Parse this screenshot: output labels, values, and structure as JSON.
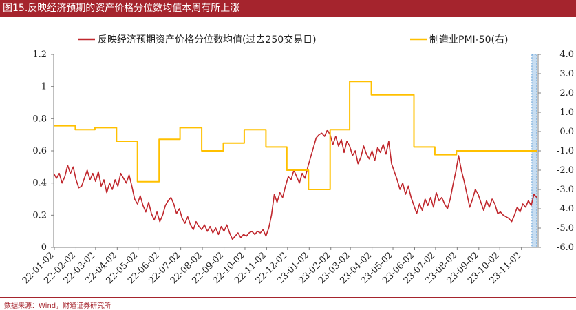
{
  "title": "图15.反映经济预期的资产价格分位数均值本周有所上涨",
  "source": "数据来源：Wind，财通证券研究所",
  "colors": {
    "title_bg": "#a5242d",
    "series_red": "#c0272d",
    "series_yellow": "#ffc000",
    "highlight_fill": "#bdd7ee",
    "highlight_stroke": "#5b9bd5",
    "axis": "#7f7f7f"
  },
  "chart_data": {
    "type": "line",
    "x_axis": {
      "start": "2022-01-01",
      "end": "2023-11-24",
      "tick_labels": [
        "22-01-02",
        "22-02-02",
        "22-03-02",
        "22-04-02",
        "22-05-02",
        "22-06-02",
        "22-07-02",
        "22-08-02",
        "22-09-02",
        "22-10-02",
        "22-11-02",
        "22-12-02",
        "23-01-02",
        "23-02-02",
        "23-03-02",
        "23-04-02",
        "23-05-02",
        "23-06-02",
        "23-07-02",
        "23-08-02",
        "23-09-02",
        "23-10-02",
        "23-11-02"
      ],
      "tick_dates": [
        "2022-01-02",
        "2022-02-02",
        "2022-03-02",
        "2022-04-02",
        "2022-05-02",
        "2022-06-02",
        "2022-07-02",
        "2022-08-02",
        "2022-09-02",
        "2022-10-02",
        "2022-11-02",
        "2022-12-02",
        "2023-01-02",
        "2023-02-02",
        "2023-03-02",
        "2023-04-02",
        "2023-05-02",
        "2023-06-02",
        "2023-07-02",
        "2023-08-02",
        "2023-09-02",
        "2023-10-02",
        "2023-11-02"
      ]
    },
    "y_left": {
      "min": 0,
      "max": 1.2,
      "ticks": [
        0,
        0.2,
        0.4,
        0.6,
        0.8,
        1,
        1.2
      ],
      "tick_labels": [
        "0",
        "0.2",
        "0.4",
        "0.6",
        "0.8",
        "1",
        "1.2"
      ]
    },
    "y_right": {
      "min": -6.0,
      "max": 4.0,
      "ticks": [
        -6,
        -5,
        -4,
        -3,
        -2,
        -1,
        0,
        1,
        2,
        3,
        4
      ],
      "tick_labels": [
        "-6.0",
        "-5.0",
        "-4.0",
        "-3.0",
        "-2.0",
        "-1.0",
        "0.0",
        "1.0",
        "2.0",
        "3.0",
        "4.0"
      ]
    },
    "highlight": {
      "from": "2023-11-17",
      "to": "2023-11-24"
    },
    "legend": {
      "position": "top"
    },
    "grid": false,
    "series": [
      {
        "name": "反映经济预期资产价格分位数均值(过去250交易日)",
        "axis": "left",
        "color": "#c0272d",
        "points": [
          [
            "2022-01-01",
            0.46
          ],
          [
            "2022-01-05",
            0.43
          ],
          [
            "2022-01-09",
            0.46
          ],
          [
            "2022-01-13",
            0.4
          ],
          [
            "2022-01-17",
            0.44
          ],
          [
            "2022-01-21",
            0.51
          ],
          [
            "2022-01-25",
            0.46
          ],
          [
            "2022-01-29",
            0.5
          ],
          [
            "2022-02-02",
            0.42
          ],
          [
            "2022-02-06",
            0.37
          ],
          [
            "2022-02-10",
            0.38
          ],
          [
            "2022-02-14",
            0.43
          ],
          [
            "2022-02-18",
            0.48
          ],
          [
            "2022-02-22",
            0.42
          ],
          [
            "2022-02-26",
            0.46
          ],
          [
            "2022-03-02",
            0.41
          ],
          [
            "2022-03-06",
            0.47
          ],
          [
            "2022-03-10",
            0.38
          ],
          [
            "2022-03-14",
            0.42
          ],
          [
            "2022-03-18",
            0.34
          ],
          [
            "2022-03-22",
            0.4
          ],
          [
            "2022-03-26",
            0.36
          ],
          [
            "2022-03-30",
            0.42
          ],
          [
            "2022-04-03",
            0.38
          ],
          [
            "2022-04-07",
            0.46
          ],
          [
            "2022-04-11",
            0.43
          ],
          [
            "2022-04-15",
            0.4
          ],
          [
            "2022-04-19",
            0.45
          ],
          [
            "2022-04-23",
            0.38
          ],
          [
            "2022-04-27",
            0.3
          ],
          [
            "2022-05-01",
            0.27
          ],
          [
            "2022-05-05",
            0.32
          ],
          [
            "2022-05-09",
            0.26
          ],
          [
            "2022-05-13",
            0.22
          ],
          [
            "2022-05-17",
            0.28
          ],
          [
            "2022-05-21",
            0.21
          ],
          [
            "2022-05-25",
            0.17
          ],
          [
            "2022-05-29",
            0.22
          ],
          [
            "2022-06-02",
            0.16
          ],
          [
            "2022-06-06",
            0.2
          ],
          [
            "2022-06-10",
            0.26
          ],
          [
            "2022-06-14",
            0.29
          ],
          [
            "2022-06-18",
            0.31
          ],
          [
            "2022-06-22",
            0.27
          ],
          [
            "2022-06-26",
            0.21
          ],
          [
            "2022-06-30",
            0.24
          ],
          [
            "2022-07-04",
            0.18
          ],
          [
            "2022-07-08",
            0.15
          ],
          [
            "2022-07-12",
            0.19
          ],
          [
            "2022-07-16",
            0.14
          ],
          [
            "2022-07-20",
            0.11
          ],
          [
            "2022-07-24",
            0.16
          ],
          [
            "2022-07-28",
            0.13
          ],
          [
            "2022-08-01",
            0.11
          ],
          [
            "2022-08-05",
            0.14
          ],
          [
            "2022-08-09",
            0.1
          ],
          [
            "2022-08-13",
            0.13
          ],
          [
            "2022-08-17",
            0.09
          ],
          [
            "2022-08-21",
            0.12
          ],
          [
            "2022-08-25",
            0.08
          ],
          [
            "2022-08-29",
            0.13
          ],
          [
            "2022-09-02",
            0.1
          ],
          [
            "2022-09-06",
            0.14
          ],
          [
            "2022-09-10",
            0.09
          ],
          [
            "2022-09-14",
            0.05
          ],
          [
            "2022-09-18",
            0.07
          ],
          [
            "2022-09-22",
            0.09
          ],
          [
            "2022-09-26",
            0.06
          ],
          [
            "2022-09-30",
            0.08
          ],
          [
            "2022-10-04",
            0.07
          ],
          [
            "2022-10-08",
            0.09
          ],
          [
            "2022-10-12",
            0.1
          ],
          [
            "2022-10-16",
            0.08
          ],
          [
            "2022-10-20",
            0.1
          ],
          [
            "2022-10-24",
            0.09
          ],
          [
            "2022-10-28",
            0.11
          ],
          [
            "2022-11-01",
            0.07
          ],
          [
            "2022-11-05",
            0.12
          ],
          [
            "2022-11-09",
            0.2
          ],
          [
            "2022-11-13",
            0.33
          ],
          [
            "2022-11-17",
            0.28
          ],
          [
            "2022-11-21",
            0.34
          ],
          [
            "2022-11-25",
            0.31
          ],
          [
            "2022-11-29",
            0.38
          ],
          [
            "2022-12-03",
            0.44
          ],
          [
            "2022-12-07",
            0.42
          ],
          [
            "2022-12-11",
            0.48
          ],
          [
            "2022-12-15",
            0.44
          ],
          [
            "2022-12-19",
            0.4
          ],
          [
            "2022-12-23",
            0.46
          ],
          [
            "2022-12-27",
            0.43
          ],
          [
            "2022-12-31",
            0.5
          ],
          [
            "2023-01-04",
            0.56
          ],
          [
            "2023-01-08",
            0.62
          ],
          [
            "2023-01-12",
            0.68
          ],
          [
            "2023-01-16",
            0.7
          ],
          [
            "2023-01-20",
            0.71
          ],
          [
            "2023-01-24",
            0.69
          ],
          [
            "2023-01-28",
            0.73
          ],
          [
            "2023-02-01",
            0.7
          ],
          [
            "2023-02-05",
            0.64
          ],
          [
            "2023-02-09",
            0.69
          ],
          [
            "2023-02-13",
            0.63
          ],
          [
            "2023-02-17",
            0.67
          ],
          [
            "2023-02-21",
            0.59
          ],
          [
            "2023-02-25",
            0.66
          ],
          [
            "2023-03-01",
            0.63
          ],
          [
            "2023-03-05",
            0.57
          ],
          [
            "2023-03-09",
            0.6
          ],
          [
            "2023-03-13",
            0.52
          ],
          [
            "2023-03-17",
            0.56
          ],
          [
            "2023-03-21",
            0.63
          ],
          [
            "2023-03-25",
            0.58
          ],
          [
            "2023-03-29",
            0.55
          ],
          [
            "2023-04-02",
            0.6
          ],
          [
            "2023-04-06",
            0.54
          ],
          [
            "2023-04-10",
            0.62
          ],
          [
            "2023-04-14",
            0.59
          ],
          [
            "2023-04-18",
            0.64
          ],
          [
            "2023-04-22",
            0.58
          ],
          [
            "2023-04-26",
            0.66
          ],
          [
            "2023-04-30",
            0.52
          ],
          [
            "2023-05-04",
            0.47
          ],
          [
            "2023-05-08",
            0.42
          ],
          [
            "2023-05-12",
            0.36
          ],
          [
            "2023-05-16",
            0.4
          ],
          [
            "2023-05-20",
            0.33
          ],
          [
            "2023-05-24",
            0.38
          ],
          [
            "2023-05-28",
            0.31
          ],
          [
            "2023-06-01",
            0.26
          ],
          [
            "2023-06-05",
            0.21
          ],
          [
            "2023-06-09",
            0.27
          ],
          [
            "2023-06-13",
            0.23
          ],
          [
            "2023-06-17",
            0.3
          ],
          [
            "2023-06-21",
            0.26
          ],
          [
            "2023-06-25",
            0.31
          ],
          [
            "2023-06-29",
            0.25
          ],
          [
            "2023-07-03",
            0.34
          ],
          [
            "2023-07-07",
            0.29
          ],
          [
            "2023-07-11",
            0.31
          ],
          [
            "2023-07-15",
            0.27
          ],
          [
            "2023-07-19",
            0.24
          ],
          [
            "2023-07-23",
            0.3
          ],
          [
            "2023-07-27",
            0.39
          ],
          [
            "2023-07-31",
            0.47
          ],
          [
            "2023-08-04",
            0.57
          ],
          [
            "2023-08-08",
            0.48
          ],
          [
            "2023-08-12",
            0.41
          ],
          [
            "2023-08-16",
            0.33
          ],
          [
            "2023-08-20",
            0.25
          ],
          [
            "2023-08-24",
            0.3
          ],
          [
            "2023-08-28",
            0.36
          ],
          [
            "2023-09-01",
            0.33
          ],
          [
            "2023-09-05",
            0.28
          ],
          [
            "2023-09-09",
            0.23
          ],
          [
            "2023-09-13",
            0.29
          ],
          [
            "2023-09-17",
            0.25
          ],
          [
            "2023-09-21",
            0.3
          ],
          [
            "2023-09-25",
            0.27
          ],
          [
            "2023-09-29",
            0.21
          ],
          [
            "2023-10-03",
            0.22
          ],
          [
            "2023-10-07",
            0.2
          ],
          [
            "2023-10-11",
            0.19
          ],
          [
            "2023-10-15",
            0.18
          ],
          [
            "2023-10-19",
            0.16
          ],
          [
            "2023-10-23",
            0.2
          ],
          [
            "2023-10-27",
            0.25
          ],
          [
            "2023-10-31",
            0.22
          ],
          [
            "2023-11-04",
            0.27
          ],
          [
            "2023-11-08",
            0.25
          ],
          [
            "2023-11-12",
            0.29
          ],
          [
            "2023-11-16",
            0.26
          ],
          [
            "2023-11-20",
            0.33
          ],
          [
            "2023-11-24",
            0.31
          ]
        ]
      },
      {
        "name": "制造业PMI-50(右)",
        "axis": "right",
        "color": "#ffc000",
        "points": [
          [
            "2022-01-01",
            0.3
          ],
          [
            "2022-02-01",
            0.3
          ],
          [
            "2022-02-01",
            0.1
          ],
          [
            "2022-03-01",
            0.1
          ],
          [
            "2022-03-01",
            0.2
          ],
          [
            "2022-04-01",
            0.2
          ],
          [
            "2022-04-01",
            -0.5
          ],
          [
            "2022-05-01",
            -0.5
          ],
          [
            "2022-05-01",
            -2.6
          ],
          [
            "2022-06-01",
            -2.6
          ],
          [
            "2022-06-01",
            -0.4
          ],
          [
            "2022-07-01",
            -0.4
          ],
          [
            "2022-07-01",
            0.2
          ],
          [
            "2022-08-01",
            0.2
          ],
          [
            "2022-08-01",
            -1.0
          ],
          [
            "2022-09-01",
            -1.0
          ],
          [
            "2022-09-01",
            -0.6
          ],
          [
            "2022-10-01",
            -0.6
          ],
          [
            "2022-10-01",
            0.1
          ],
          [
            "2022-11-01",
            0.1
          ],
          [
            "2022-11-01",
            -0.8
          ],
          [
            "2022-12-01",
            -0.8
          ],
          [
            "2022-12-01",
            -2.0
          ],
          [
            "2023-01-01",
            -2.0
          ],
          [
            "2023-01-01",
            -3.0
          ],
          [
            "2023-02-01",
            -3.0
          ],
          [
            "2023-02-01",
            0.1
          ],
          [
            "2023-03-01",
            0.1
          ],
          [
            "2023-03-01",
            2.6
          ],
          [
            "2023-04-01",
            2.6
          ],
          [
            "2023-04-01",
            1.9
          ],
          [
            "2023-05-01",
            1.9
          ],
          [
            "2023-06-01",
            1.9
          ],
          [
            "2023-06-01",
            -0.8
          ],
          [
            "2023-07-01",
            -0.8
          ],
          [
            "2023-07-01",
            -1.2
          ],
          [
            "2023-08-01",
            -1.2
          ],
          [
            "2023-08-01",
            -1.0
          ],
          [
            "2023-09-01",
            -1.0
          ],
          [
            "2023-10-01",
            -1.0
          ],
          [
            "2023-11-01",
            -1.0
          ],
          [
            "2023-11-24",
            -1.0
          ]
        ]
      }
    ]
  }
}
